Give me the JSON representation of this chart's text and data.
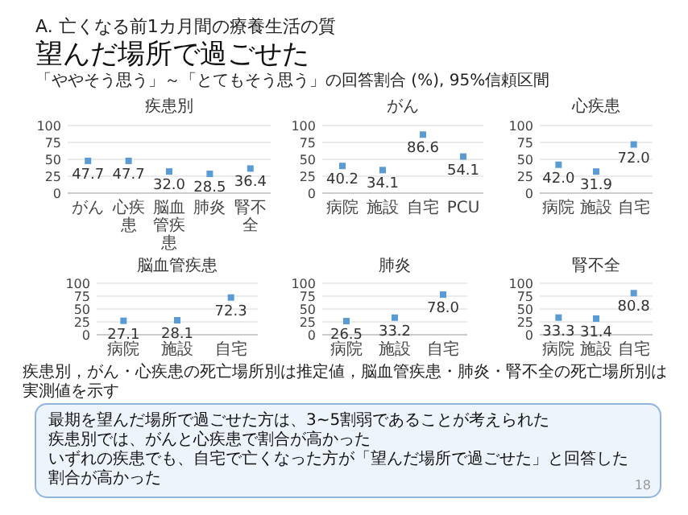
{
  "chart_data": [
    {
      "type": "other",
      "title": "望んだ場所で過ごせた",
      "subtitle": "「ややそう思う」～「とてもそう思う」の回答割合 (%), 95%信頼区間",
      "annotations": [
        "A. 亡くなる前1カ月間の療養生活の質",
        "疾患別，がん・心疾患の死亡場所別は推定値，脳血管疾患・肺炎・腎不全の死亡場所別は実測値を示す",
        "最期を望んだ場所で過ごせた方は、3~5割弱であることが考えられた",
        "疾患別では、がんと心疾患で割合が高かった",
        "いずれの疾患でも、自宅で亡くなった方が「望んだ場所で過ごせた」と回答した割合が高かった",
        "18"
      ]
    },
    {
      "type": "scatter",
      "title": "疾患別",
      "categories": [
        "がん",
        "心疾患",
        "脳血管疾患",
        "肺炎",
        "腎不全"
      ],
      "values": [
        47.7,
        47.7,
        32.0,
        28.5,
        36.4
      ],
      "value_labels": [
        "47.7",
        "47.7",
        "32.0",
        "28.5",
        "36.4"
      ],
      "color": "#5b9bd5",
      "ylim": [
        0,
        100
      ],
      "yticks": [
        0,
        25,
        50,
        75,
        100
      ],
      "grid": "y",
      "marker": "square"
    },
    {
      "type": "scatter",
      "title": "がん",
      "categories": [
        "病院",
        "施設",
        "自宅",
        "PCU"
      ],
      "values": [
        40.2,
        34.1,
        86.6,
        54.1
      ],
      "value_labels": [
        "40.2",
        "34.1",
        "86.6",
        "54.1"
      ],
      "color": "#5b9bd5",
      "ylim": [
        0,
        100
      ],
      "yticks": [
        0,
        25,
        50,
        75,
        100
      ],
      "grid": "y",
      "marker": "square"
    },
    {
      "type": "scatter",
      "title": "心疾患",
      "categories": [
        "病院",
        "施設",
        "自宅"
      ],
      "values": [
        42.0,
        31.9,
        72.0
      ],
      "value_labels": [
        "42.0",
        "31.9",
        "72.0"
      ],
      "color": "#5b9bd5",
      "ylim": [
        0,
        100
      ],
      "yticks": [
        0,
        25,
        50,
        75,
        100
      ],
      "grid": "y",
      "marker": "square"
    },
    {
      "type": "scatter",
      "title": "脳血管疾患",
      "categories": [
        "病院",
        "施設",
        "自宅"
      ],
      "values": [
        27.1,
        28.1,
        72.3
      ],
      "value_labels": [
        "27.1",
        "28.1",
        "72.3"
      ],
      "color": "#5b9bd5",
      "ylim": [
        0,
        100
      ],
      "yticks": [
        0,
        25,
        50,
        75,
        100
      ],
      "grid": "y",
      "marker": "square"
    },
    {
      "type": "scatter",
      "title": "肺炎",
      "categories": [
        "病院",
        "施設",
        "自宅"
      ],
      "values": [
        26.5,
        33.2,
        78.0
      ],
      "value_labels": [
        "26.5",
        "33.2",
        "78.0"
      ],
      "color": "#5b9bd5",
      "ylim": [
        0,
        100
      ],
      "yticks": [
        0,
        25,
        50,
        75,
        100
      ],
      "grid": "y",
      "marker": "square"
    },
    {
      "type": "scatter",
      "title": "腎不全",
      "categories": [
        "病院",
        "施設",
        "自宅"
      ],
      "values": [
        33.3,
        31.4,
        80.8
      ],
      "value_labels": [
        "33.3",
        "31.4",
        "80.8"
      ],
      "color": "#5b9bd5",
      "ylim": [
        0,
        100
      ],
      "yticks": [
        0,
        25,
        50,
        75,
        100
      ],
      "grid": "y",
      "marker": "square"
    }
  ]
}
